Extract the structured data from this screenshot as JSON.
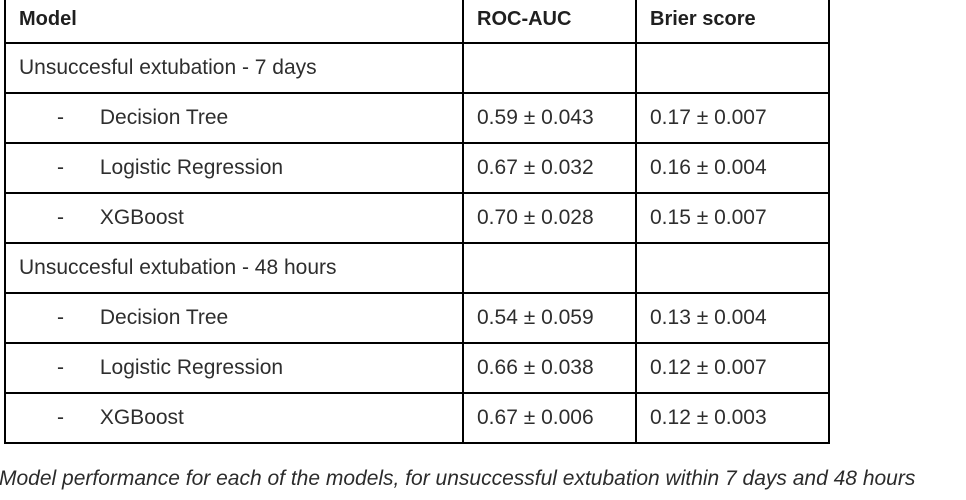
{
  "colors": {
    "border": "#000000",
    "text": "#2e2e2e",
    "background": "#ffffff"
  },
  "table": {
    "columns": [
      "Model",
      "ROC-AUC",
      "Brier score"
    ],
    "bullet": "-",
    "sections": [
      {
        "heading": "Unsuccesful extubation - 7 days",
        "rows": [
          {
            "model": "Decision Tree",
            "roc_auc": "0.59 ± 0.043",
            "brier_score": "0.17 ± 0.007"
          },
          {
            "model": "Logistic Regression",
            "roc_auc": "0.67 ± 0.032",
            "brier_score": "0.16 ± 0.004"
          },
          {
            "model": "XGBoost",
            "roc_auc": "0.70 ± 0.028",
            "brier_score": "0.15 ± 0.007"
          }
        ]
      },
      {
        "heading": "Unsuccesful extubation - 48 hours",
        "rows": [
          {
            "model": "Decision Tree",
            "roc_auc": "0.54 ± 0.059",
            "brier_score": "0.13 ± 0.004"
          },
          {
            "model": "Logistic Regression",
            "roc_auc": "0.66 ± 0.038",
            "brier_score": "0.12 ± 0.007"
          },
          {
            "model": "XGBoost",
            "roc_auc": "0.67 ± 0.006",
            "brier_score": "0.12 ± 0.003"
          }
        ]
      }
    ]
  },
  "caption": "Model performance for each of the models, for unsuccessful extubation within 7 days and 48 hours"
}
